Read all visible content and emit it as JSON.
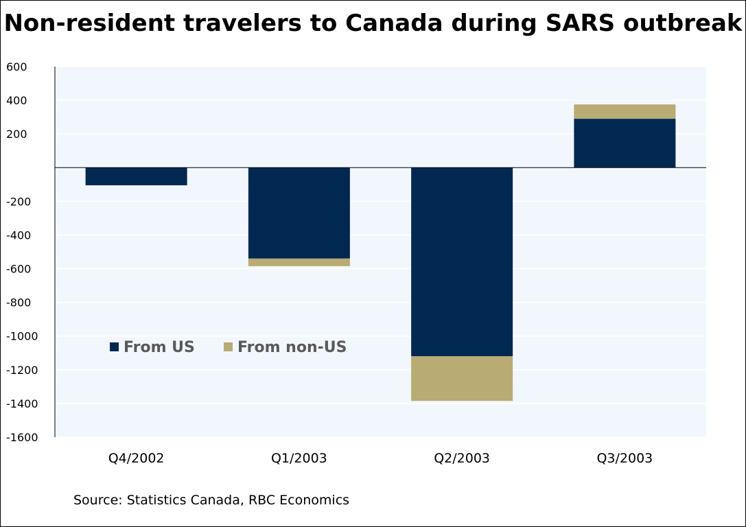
{
  "chart_data": {
    "type": "bar",
    "stacked": true,
    "title": "Non-resident travelers to Canada during SARS outbreak",
    "source": "Source: Statistics Canada, RBC Economics",
    "categories": [
      "Q4/2002",
      "Q1/2003",
      "Q2/2003",
      "Q3/2003"
    ],
    "series": [
      {
        "name": "From US",
        "color": "#002850",
        "values": [
          -105,
          -540,
          -1120,
          290
        ]
      },
      {
        "name": "From non-US",
        "color": "#B8AB74",
        "values": [
          0,
          -45,
          -265,
          85
        ]
      }
    ],
    "ylim": [
      -1600,
      600
    ],
    "yticks": [
      600,
      400,
      200,
      -200,
      -400,
      -600,
      -800,
      -1000,
      -1200,
      -1400,
      -1600
    ],
    "ytick_labels": [
      "600",
      "400",
      "200",
      "-200",
      "-400",
      "-600",
      "-800",
      "-1000",
      "-1200",
      "-1400",
      "-1600"
    ],
    "grid": true,
    "legend_position": "lower-left inside plot",
    "plot_background": "#F2F7FD"
  }
}
